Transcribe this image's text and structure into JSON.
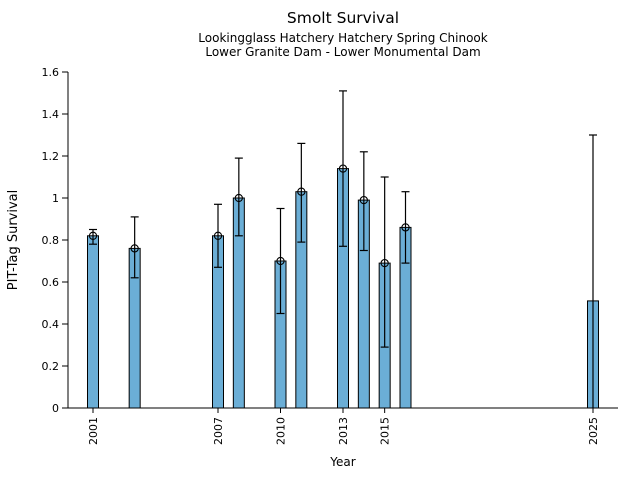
{
  "chart_data": {
    "type": "bar",
    "title": "Smolt Survival",
    "subtitle1": "Lookingglass Hatchery Hatchery Spring Chinook",
    "subtitle2": "Lower Granite Dam - Lower Monumental Dam",
    "xlabel": "Year",
    "ylabel": "PIT-Tag Survival",
    "xlim": [
      1999.8,
      2026.2
    ],
    "ylim": [
      0,
      1.6
    ],
    "yticks": [
      0,
      0.2,
      0.4,
      0.6,
      0.8,
      1,
      1.2,
      1.4,
      1.6
    ],
    "ytick_labels": [
      "0",
      "0.2",
      "0.4",
      "0.6",
      "0.8",
      "1",
      "1.2",
      "1.4",
      "1.6"
    ],
    "xticks": [
      2001,
      2007,
      2010,
      2013,
      2015,
      2025
    ],
    "xtick_labels": [
      "2001",
      "2007",
      "2010",
      "2013",
      "2015",
      "2025"
    ],
    "grid": false,
    "legend": "none",
    "bar_color": "#6baed6",
    "bar_edge_color": "#000000",
    "error_bar_color": "#000000",
    "marker_style": "open-circle",
    "points": [
      {
        "year": 2001,
        "value": 0.82,
        "ci_lo": 0.78,
        "ci_hi": 0.85,
        "marker": true,
        "cap_lo": true
      },
      {
        "year": 2003,
        "value": 0.76,
        "ci_lo": 0.62,
        "ci_hi": 0.91,
        "marker": true,
        "cap_lo": true
      },
      {
        "year": 2007,
        "value": 0.82,
        "ci_lo": 0.67,
        "ci_hi": 0.97,
        "marker": true,
        "cap_lo": true
      },
      {
        "year": 2008,
        "value": 1.0,
        "ci_lo": 0.82,
        "ci_hi": 1.19,
        "marker": true,
        "cap_lo": true
      },
      {
        "year": 2010,
        "value": 0.7,
        "ci_lo": 0.45,
        "ci_hi": 0.95,
        "marker": true,
        "cap_lo": true
      },
      {
        "year": 2011,
        "value": 1.03,
        "ci_lo": 0.79,
        "ci_hi": 1.26,
        "marker": true,
        "cap_lo": true
      },
      {
        "year": 2013,
        "value": 1.14,
        "ci_lo": 0.77,
        "ci_hi": 1.51,
        "marker": true,
        "cap_lo": true
      },
      {
        "year": 2014,
        "value": 0.99,
        "ci_lo": 0.75,
        "ci_hi": 1.22,
        "marker": true,
        "cap_lo": true
      },
      {
        "year": 2015,
        "value": 0.69,
        "ci_lo": 0.29,
        "ci_hi": 1.1,
        "marker": true,
        "cap_lo": true
      },
      {
        "year": 2016,
        "value": 0.86,
        "ci_lo": 0.69,
        "ci_hi": 1.03,
        "marker": true,
        "cap_lo": true
      },
      {
        "year": 2025,
        "value": 0.51,
        "ci_lo": 0.0,
        "ci_hi": 1.3,
        "marker": false,
        "cap_lo": false
      }
    ]
  }
}
